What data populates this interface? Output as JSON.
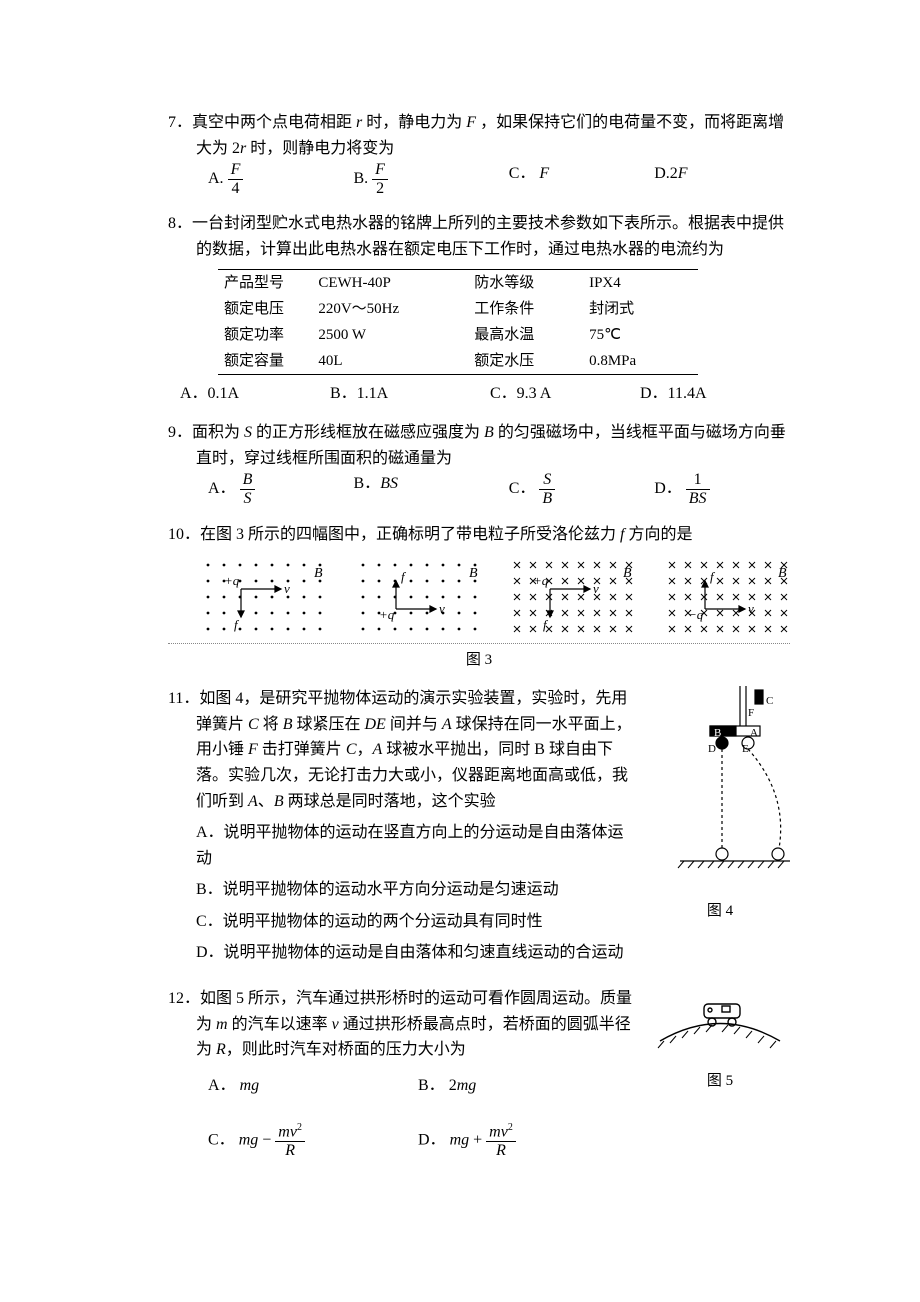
{
  "q7": {
    "num": "7．",
    "stem": "真空中两个点电荷相距 r 时，静电力为 F ，如果保持它们的电荷量不变，而将距离增大为 2r 时，则静电力将变为",
    "A_label": "A.",
    "B_label": "B.",
    "C_label": "C．",
    "D_label": "D.",
    "A_frac_num": "F",
    "A_frac_den": "4",
    "B_frac_num": "F",
    "B_frac_den": "2",
    "C_val": "F",
    "D_val": "2F"
  },
  "q8": {
    "num": "8．",
    "stem": "一台封闭型贮水式电热水器的铭牌上所列的主要技术参数如下表所示。根据表中提供的数据，计算出此电热水器在额定电压下工作时，通过电热水器的电流约为",
    "table": {
      "rows": [
        [
          "产品型号",
          "CEWH-40P",
          "防水等级",
          "IPX4"
        ],
        [
          "额定电压",
          "220V～50Hz",
          "工作条件",
          "封闭式"
        ],
        [
          "额定功率",
          "2500 W",
          "最高水温",
          "75℃"
        ],
        [
          "额定容量",
          "40L",
          "额定水压",
          "0.8MPa"
        ]
      ]
    },
    "A": "A．0.1A",
    "B": "B．1.1A",
    "C": "C．9.3 A",
    "D": "D．11.4A"
  },
  "q9": {
    "num": "9．",
    "stem": "面积为 S 的正方形线框放在磁感应强度为 B 的匀强磁场中，当线框平面与磁场方向垂直时，穿过线框所围面积的磁通量为",
    "A_label": "A．",
    "A_num": "B",
    "A_den": "S",
    "B_label": "B．",
    "B_val": "BS",
    "C_label": "C．",
    "C_num": "S",
    "C_den": "B",
    "D_label": "D．",
    "D_num": "1",
    "D_den": "BS"
  },
  "q10": {
    "num": "10．",
    "stem": "在图 3 所示的四幅图中，正确标明了带电粒子所受洛伦兹力 f 方向的是",
    "caption": "图 3",
    "panels": {
      "p1": {
        "field": "out",
        "q": "+q",
        "f_dir": "down",
        "B": "B"
      },
      "p2": {
        "field": "out",
        "q": "+q",
        "f_dir": "up",
        "B": "B"
      },
      "p3": {
        "field": "in",
        "q": "+q",
        "f_dir": "down",
        "B": "B"
      },
      "p4": {
        "field": "in",
        "q": "−q",
        "f_dir": "up",
        "B": "B"
      }
    }
  },
  "q11": {
    "num": "11．",
    "stem": "如图 4，是研究平抛物体运动的演示实验装置，实验时，先用弹簧片 C 将 B 球紧压在 DE 间并与 A 球保持在同一水平面上，用小锤 F 击打弹簧片 C，A 球被水平抛出，同时 B 球自由下落。实验几次，无论打击力大或小，仪器距离地面高或低，我们听到 A、B 两球总是同时落地，这个实验",
    "A": "A．说明平抛物体的运动在竖直方向上的分运动是自由落体运动",
    "B": "B．说明平抛物体的运动水平方向分运动是匀速运动",
    "C": "C．说明平抛物体的运动的两个分运动具有同时性",
    "D": "D．说明平抛物体的运动是自由落体和匀速直线运动的合运动",
    "caption": "图 4"
  },
  "q12": {
    "num": "12．",
    "stem": "如图 5 所示，汽车通过拱形桥时的运动可看作圆周运动。质量为 m 的汽车以速率 v 通过拱形桥最高点时，若桥面的圆弧半径为 R，则此时汽车对桥面的压力大小为",
    "caption": "图 5",
    "A_label": "A．",
    "A_val": "mg",
    "B_label": "B．",
    "B_val": "2mg",
    "C_label": "C．",
    "C_pre": "mg − ",
    "C_num": "mv²",
    "C_den": "R",
    "D_label": "D．",
    "D_pre": "mg + ",
    "D_num": "mv²",
    "D_den": "R"
  },
  "style": {
    "text_color": "#000000",
    "background": "#ffffff",
    "body_fontsize": 16,
    "line_color": "#000000"
  }
}
